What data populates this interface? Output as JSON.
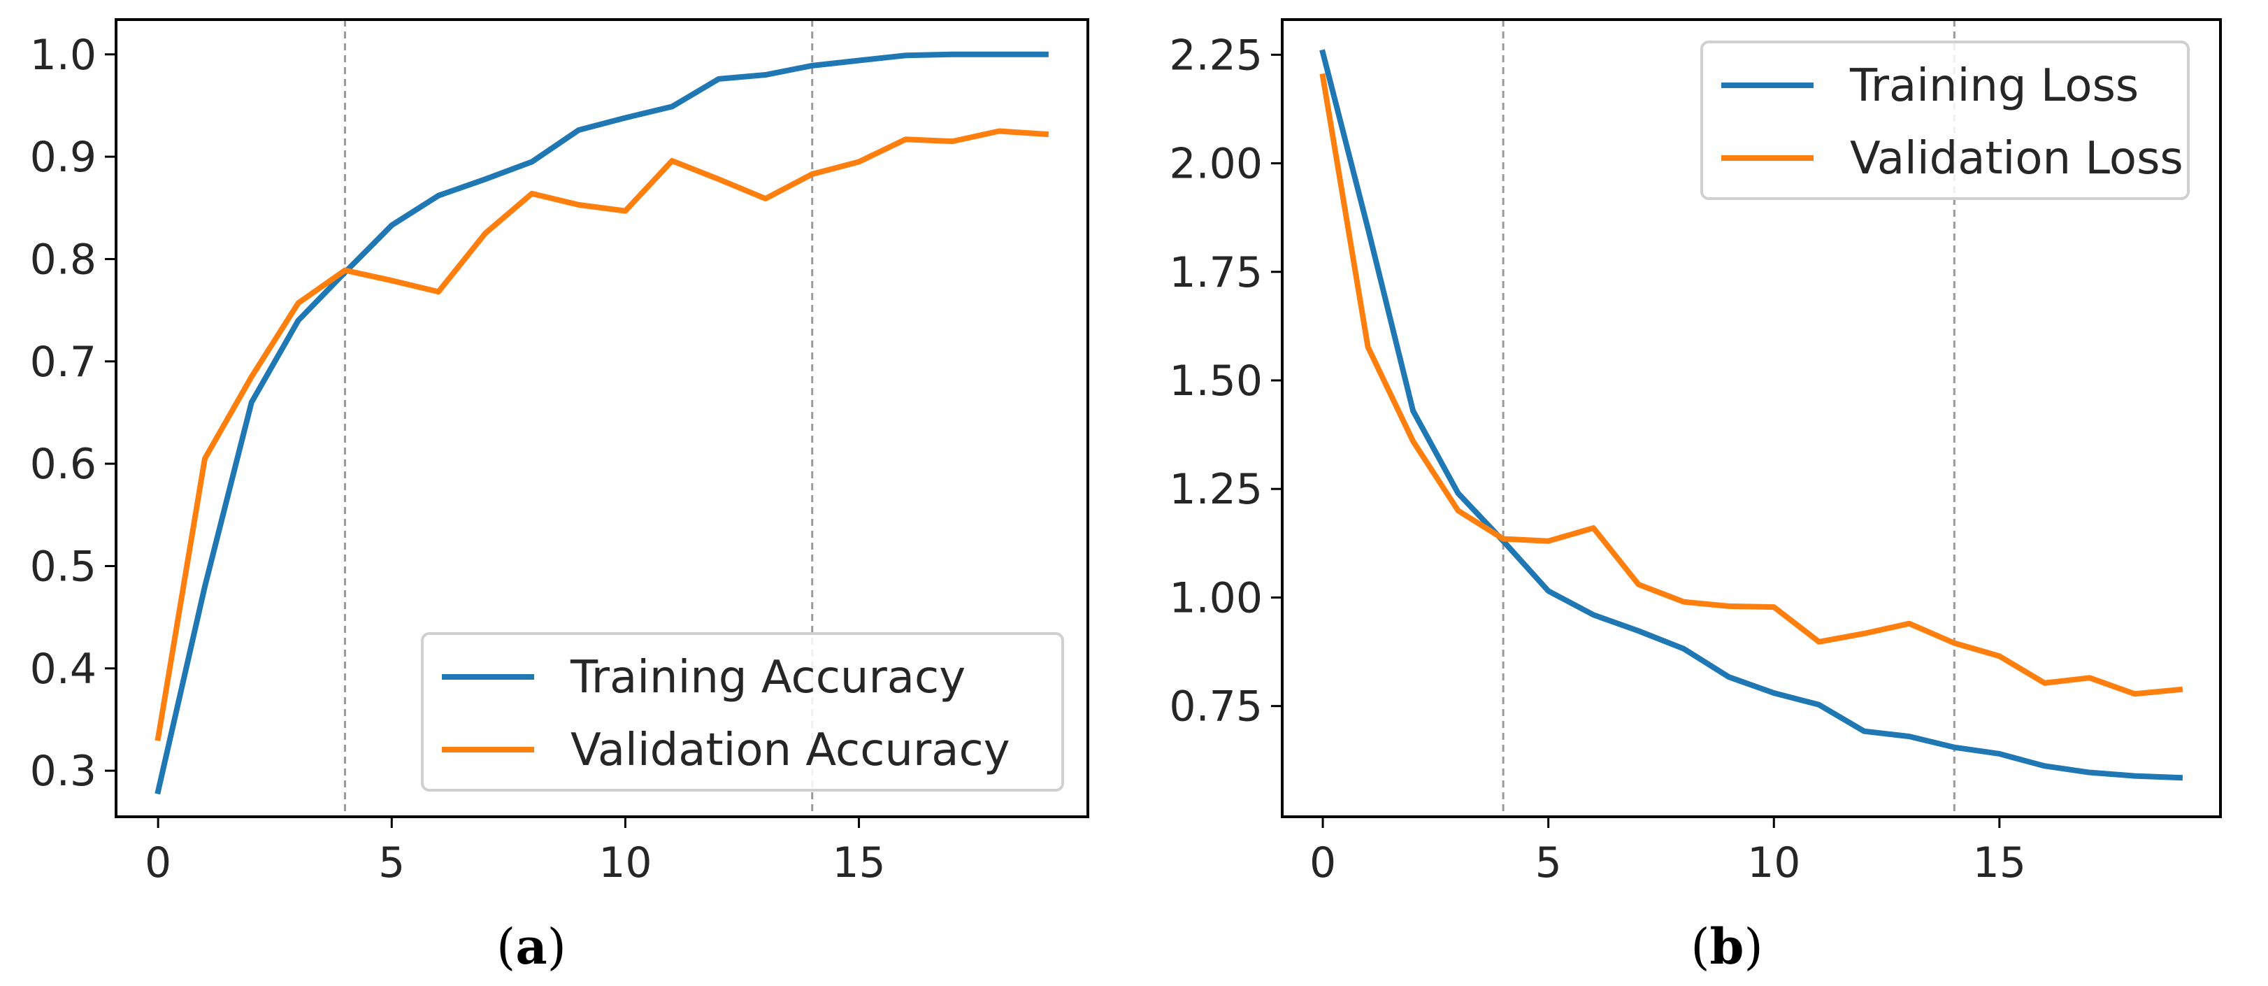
{
  "chart_data": [
    {
      "type": "line",
      "caption_open": "(",
      "caption_letter": "a",
      "caption_close": ")",
      "x": [
        0,
        1,
        2,
        3,
        4,
        5,
        6,
        7,
        8,
        9,
        10,
        11,
        12,
        13,
        14,
        15,
        16,
        17,
        18,
        19
      ],
      "series": [
        {
          "name": "Training Accuracy",
          "color": "#1f77b4",
          "values": [
            0.28,
            0.48,
            0.66,
            0.74,
            0.787,
            0.833,
            0.862,
            0.878,
            0.895,
            0.926,
            0.938,
            0.949,
            0.976,
            0.98,
            0.989,
            0.994,
            0.999,
            1.0,
            1.0,
            1.0
          ]
        },
        {
          "name": "Validation Accuracy",
          "color": "#ff7f0e",
          "values": [
            0.332,
            0.605,
            0.685,
            0.757,
            0.789,
            0.779,
            0.768,
            0.825,
            0.864,
            0.853,
            0.847,
            0.896,
            0.878,
            0.859,
            0.883,
            0.895,
            0.917,
            0.915,
            0.925,
            0.922
          ]
        }
      ],
      "xlim": [
        -0.9,
        19.9
      ],
      "ylim": [
        0.255,
        1.034
      ],
      "xticks": [
        0,
        5,
        10,
        15
      ],
      "xtick_labels": [
        "0",
        "5",
        "10",
        "15"
      ],
      "yticks": [
        0.3,
        0.4,
        0.5,
        0.6,
        0.7,
        0.8,
        0.9,
        1.0
      ],
      "ytick_labels": [
        "0.3",
        "0.4",
        "0.5",
        "0.6",
        "0.7",
        "0.8",
        "0.9",
        "1.0"
      ],
      "vlines": [
        4,
        14
      ],
      "legend_position": "lower-right",
      "title": "",
      "xlabel": "",
      "ylabel": ""
    },
    {
      "type": "line",
      "caption_open": "(",
      "caption_letter": "b",
      "caption_close": ")",
      "x": [
        0,
        1,
        2,
        3,
        4,
        5,
        6,
        7,
        8,
        9,
        10,
        11,
        12,
        13,
        14,
        15,
        16,
        17,
        18,
        19
      ],
      "series": [
        {
          "name": "Training Loss",
          "color": "#1f77b4",
          "values": [
            2.255,
            1.85,
            1.43,
            1.24,
            1.13,
            1.015,
            0.96,
            0.923,
            0.882,
            0.817,
            0.78,
            0.753,
            0.692,
            0.68,
            0.655,
            0.64,
            0.612,
            0.597,
            0.589,
            0.585
          ]
        },
        {
          "name": "Validation Loss",
          "color": "#ff7f0e",
          "values": [
            2.2,
            1.577,
            1.36,
            1.2,
            1.135,
            1.13,
            1.16,
            1.03,
            0.99,
            0.98,
            0.978,
            0.898,
            0.917,
            0.94,
            0.895,
            0.865,
            0.803,
            0.815,
            0.778,
            0.788
          ]
        }
      ],
      "xlim": [
        -0.9,
        19.9
      ],
      "ylim": [
        0.495,
        2.331
      ],
      "xticks": [
        0,
        5,
        10,
        15
      ],
      "xtick_labels": [
        "0",
        "5",
        "10",
        "15"
      ],
      "yticks": [
        0.75,
        1.0,
        1.25,
        1.5,
        1.75,
        2.0,
        2.25
      ],
      "ytick_labels": [
        "0.75",
        "1.00",
        "1.25",
        "1.50",
        "1.75",
        "2.00",
        "2.25"
      ],
      "vlines": [
        4,
        14
      ],
      "legend_position": "upper-right",
      "title": "",
      "xlabel": "",
      "ylabel": ""
    }
  ]
}
